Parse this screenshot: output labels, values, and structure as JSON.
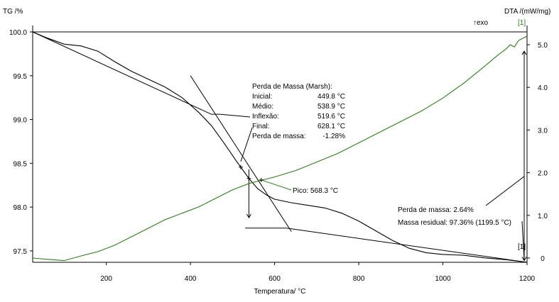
{
  "chart_data": {
    "type": "line",
    "xlabel": "Temperatura/ °C",
    "ylabel_left": "TG /%",
    "ylabel_right": "DTA /(mW/mg)",
    "exo_label": "↑exo",
    "xlim": [
      25,
      1200
    ],
    "ylim_left": [
      97.37,
      100.0
    ],
    "ylim_right": [
      -0.1,
      5.3
    ],
    "x_ticks": [
      200,
      400,
      600,
      800,
      1000,
      1200
    ],
    "y_ticks_left": [
      97.5,
      98.0,
      98.5,
      99.0,
      99.5,
      100.0
    ],
    "y_tick_labels_left": [
      "97.5",
      "98.0",
      "98.5",
      "99.0",
      "99.5",
      "100.0"
    ],
    "y_ticks_right": [
      0,
      1.0,
      2.0,
      3.0,
      4.0,
      5.0
    ],
    "y_tick_labels_right": [
      "0",
      "1.0",
      "2.0",
      "3.0",
      "4.0",
      "5.0"
    ],
    "legend_marker_top": "[1]",
    "legend_marker_bottom": "[1]",
    "series": [
      {
        "id": "tg",
        "color": "#000000",
        "axis": "left",
        "x": [
          25,
          60,
          100,
          140,
          180,
          220,
          260,
          300,
          340,
          380,
          420,
          450,
          480,
          510,
          540,
          560,
          580,
          600,
          640,
          680,
          720,
          760,
          800,
          840,
          880,
          920,
          960,
          1000,
          1050,
          1100,
          1150,
          1200
        ],
        "y": [
          100.0,
          99.93,
          99.86,
          99.84,
          99.78,
          99.66,
          99.55,
          99.46,
          99.37,
          99.25,
          99.08,
          98.93,
          98.73,
          98.52,
          98.32,
          98.21,
          98.14,
          98.09,
          98.05,
          98.02,
          97.99,
          97.93,
          97.84,
          97.73,
          97.62,
          97.53,
          97.48,
          97.46,
          97.45,
          97.42,
          97.4,
          97.37
        ]
      },
      {
        "id": "dta",
        "color": "#2e7d1e",
        "axis": "right",
        "x": [
          25,
          60,
          100,
          140,
          180,
          220,
          260,
          300,
          340,
          380,
          420,
          460,
          500,
          540,
          568,
          600,
          650,
          700,
          750,
          800,
          850,
          900,
          950,
          1000,
          1050,
          1100,
          1130,
          1150,
          1160,
          1170,
          1180,
          1190,
          1200
        ],
        "y": [
          0.0,
          -0.03,
          -0.06,
          0.05,
          0.15,
          0.3,
          0.5,
          0.7,
          0.9,
          1.05,
          1.2,
          1.4,
          1.6,
          1.75,
          1.82,
          1.9,
          2.05,
          2.25,
          2.45,
          2.7,
          2.95,
          3.2,
          3.45,
          3.75,
          4.1,
          4.5,
          4.75,
          4.9,
          5.0,
          4.95,
          5.1,
          5.15,
          5.2
        ]
      }
    ],
    "annotations": {
      "marsh": {
        "title": "Perda de Massa (Marsh):",
        "rows": [
          {
            "label": "Inicial:",
            "value": "449.8 °C"
          },
          {
            "label": "Médio:",
            "value": "538.9 °C"
          },
          {
            "label": "Inflexão:",
            "value": "519.6 °C"
          },
          {
            "label": "Final:",
            "value": "628.1 °C"
          },
          {
            "label": "Perda de massa:",
            "value": "-1.28%"
          }
        ],
        "initial_x": 449.8,
        "mid_x": 538.9,
        "inflection_x": 519.6,
        "final_x": 628.1
      },
      "peak": {
        "label": "Pico: 568.3 °C",
        "x": 568.3
      },
      "total_loss": {
        "loss_text": "Perda de massa: 2.64%",
        "residual_text": "Massa residual: 97.36% (1199.5 °C)",
        "residual_value": 97.36,
        "residual_x": 1199.5
      }
    }
  }
}
